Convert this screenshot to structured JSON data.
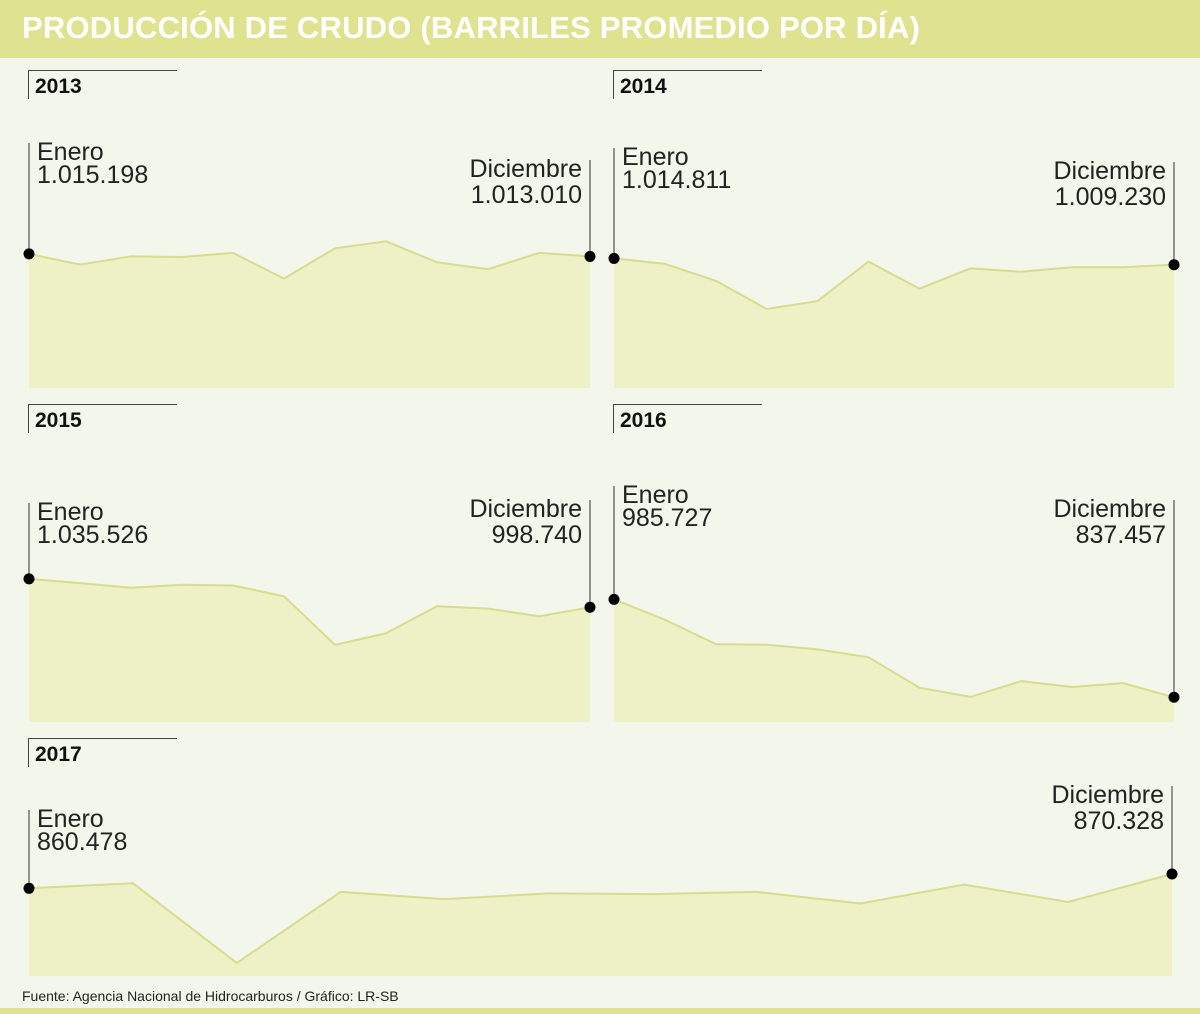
{
  "title": "PRODUCCIÓN DE CRUDO (BARRILES PROMEDIO POR DÍA)",
  "footer": "Fuente: Agencia Nacional de Hidrocarburos  / Gráfico: LR-SB",
  "colors": {
    "area_fill": "#eef0c5",
    "line": "#d8dc8c",
    "header": "#dfe28e",
    "marker": "#000000"
  },
  "chart_data": [
    {
      "type": "area",
      "year": "2013",
      "start_label": "Enero",
      "start_value_label": "1.015.198",
      "end_label": "Diciembre",
      "end_value_label": "1.013.010",
      "values": [
        1015198,
        1006000,
        1013000,
        1012500,
        1016000,
        994000,
        1020000,
        1026000,
        1008000,
        1002000,
        1016000,
        1013010
      ],
      "ylim": [
        900000,
        1040000
      ]
    },
    {
      "type": "area",
      "year": "2014",
      "start_label": "Enero",
      "start_value_label": "1.014.811",
      "end_label": "Diciembre",
      "end_value_label": "1.009.230",
      "values": [
        1014811,
        1010000,
        995000,
        970000,
        977000,
        1012000,
        988000,
        1006000,
        1003000,
        1007000,
        1007000,
        1009230
      ],
      "ylim": [
        900000,
        1040000
      ]
    },
    {
      "type": "area",
      "year": "2015",
      "start_label": "Enero",
      "start_value_label": "1.035.526",
      "end_label": "Diciembre",
      "end_value_label": "998.740",
      "values": [
        1035526,
        1030000,
        1024000,
        1028000,
        1027000,
        1013000,
        950000,
        965000,
        1000000,
        997000,
        987000,
        998740
      ],
      "ylim": [
        850000,
        1060000
      ]
    },
    {
      "type": "area",
      "year": "2016",
      "start_label": "Enero",
      "start_value_label": "985.727",
      "end_label": "Diciembre",
      "end_value_label": "837.457",
      "values": [
        985727,
        955000,
        918000,
        917000,
        910000,
        898000,
        852000,
        838000,
        862000,
        853000,
        859000,
        837457
      ],
      "ylim": [
        800000,
        1000000
      ]
    },
    {
      "type": "area",
      "year": "2017",
      "start_label": "Enero",
      "start_value_label": "860.478",
      "end_label": "Diciembre",
      "end_value_label": "870.328",
      "values": [
        860478,
        864000,
        809000,
        858000,
        853000,
        857000,
        856500,
        858000,
        850000,
        863000,
        851000,
        870328
      ],
      "ylim": [
        800000,
        880000
      ]
    }
  ]
}
